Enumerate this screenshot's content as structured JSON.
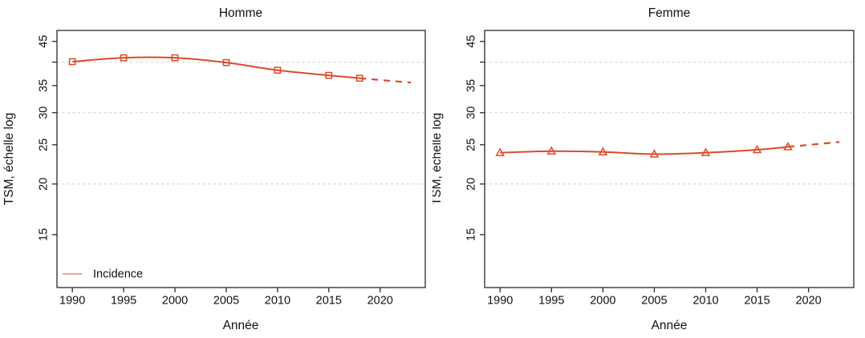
{
  "figure": {
    "x_axis_label": "Année",
    "y_axis_label": "TSM, échelle log",
    "x_tick_labels": [
      "1990",
      "1995",
      "2000",
      "2005",
      "2010",
      "2015",
      "2020"
    ],
    "x_tick_years": [
      1990,
      1995,
      2000,
      2005,
      2010,
      2015,
      2020
    ],
    "y_ticks": [
      {
        "value": 15,
        "label": "15"
      },
      {
        "value": 20,
        "label": "20"
      },
      {
        "value": 25,
        "label": "25"
      },
      {
        "value": 30,
        "label": "30"
      },
      {
        "value": 35,
        "label": "35"
      },
      {
        "value": 40,
        "label": ""
      },
      {
        "value": 45,
        "label": "45"
      }
    ],
    "y_gridlines": [
      20,
      30,
      40
    ],
    "xlim": [
      1988.5,
      2024.4
    ],
    "ylim": [
      11.1,
      47.9
    ],
    "y_scale": "log",
    "colors": {
      "line": "#DC4A2B",
      "legend_line": "#E9855F",
      "grid": "#CBCBCB",
      "axis": "#2A2A2A",
      "text": "#111111"
    }
  },
  "chart_data": [
    {
      "type": "line",
      "title": "Homme",
      "xlabel": "Année",
      "ylabel": "TSM, échelle log",
      "marker": "square",
      "x": [
        1990,
        1995,
        2000,
        2005,
        2010,
        2015,
        2018
      ],
      "series": [
        {
          "name": "Incidence",
          "values": [
            40.1,
            41.0,
            41.0,
            39.9,
            38.2,
            37.1,
            36.5
          ]
        }
      ],
      "projection": {
        "style": "dashed",
        "x": [
          2018,
          2023
        ],
        "values": [
          36.5,
          35.6
        ]
      },
      "legend": {
        "position": "bottom-left",
        "entries": [
          "Incidence"
        ]
      },
      "x_range": [
        1988.5,
        2024.4
      ],
      "y_range": [
        11.1,
        47.9
      ],
      "y_scale": "log",
      "grid": "dashed horizontal at 20, 30, 40"
    },
    {
      "type": "line",
      "title": "Femme",
      "xlabel": "Année",
      "ylabel": "TSM, échelle log",
      "marker": "triangle",
      "x": [
        1990,
        1995,
        2000,
        2005,
        2010,
        2015,
        2018
      ],
      "series": [
        {
          "name": "Incidence",
          "values": [
            23.9,
            24.1,
            24.0,
            23.7,
            23.9,
            24.3,
            24.7
          ]
        }
      ],
      "projection": {
        "style": "dashed",
        "x": [
          2018,
          2023
        ],
        "values": [
          24.7,
          25.4
        ]
      },
      "legend": null,
      "x_range": [
        1988.5,
        2024.4
      ],
      "y_range": [
        11.1,
        47.9
      ],
      "y_scale": "log",
      "grid": "dashed horizontal at 20, 30, 40"
    }
  ]
}
